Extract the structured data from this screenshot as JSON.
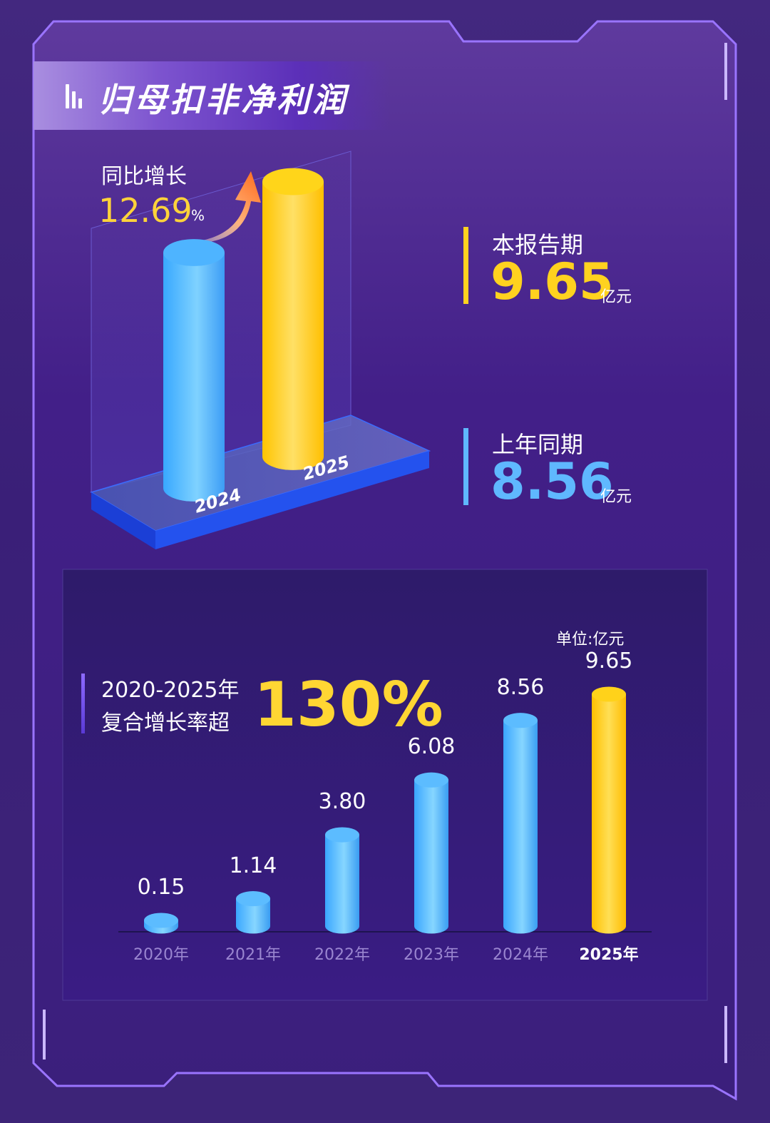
{
  "title": "归母扣非净利润",
  "yoy": {
    "label": "同比增长",
    "value": "12.69",
    "unit": "%"
  },
  "current_period": {
    "label": "本报告期",
    "value": "9.65",
    "unit": "亿元",
    "color": "#ffd21f"
  },
  "prior_period": {
    "label": "上年同期",
    "value": "8.56",
    "unit": "亿元",
    "color": "#5fb8ff"
  },
  "compare_years": [
    "2024",
    "2025"
  ],
  "cagr": {
    "line1": "2020-2025年",
    "line2": "复合增长率超",
    "value": "130%"
  },
  "unit_note": "单位:亿元",
  "colors": {
    "blue": "#4fb0ff",
    "yellow": "#ffc400",
    "accent_yellow": "#ffd633",
    "frame": "#9a74ff"
  },
  "chart_data": [
    {
      "type": "bar",
      "categories": [
        "2024",
        "2025"
      ],
      "values": [
        8.56,
        9.65
      ],
      "title": "",
      "xlabel": "",
      "ylabel": "",
      "ylim": [
        0,
        10
      ]
    },
    {
      "type": "bar",
      "categories": [
        "2020年",
        "2021年",
        "2022年",
        "2023年",
        "2024年",
        "2025年"
      ],
      "values": [
        0.15,
        1.14,
        3.8,
        6.08,
        8.56,
        9.65
      ],
      "value_labels": [
        "0.15",
        "1.14",
        "3.80",
        "6.08",
        "8.56",
        "9.65"
      ],
      "highlight": "2025年",
      "title": "",
      "xlabel": "",
      "ylabel": "",
      "unit": "单位:亿元",
      "grid": false
    }
  ]
}
